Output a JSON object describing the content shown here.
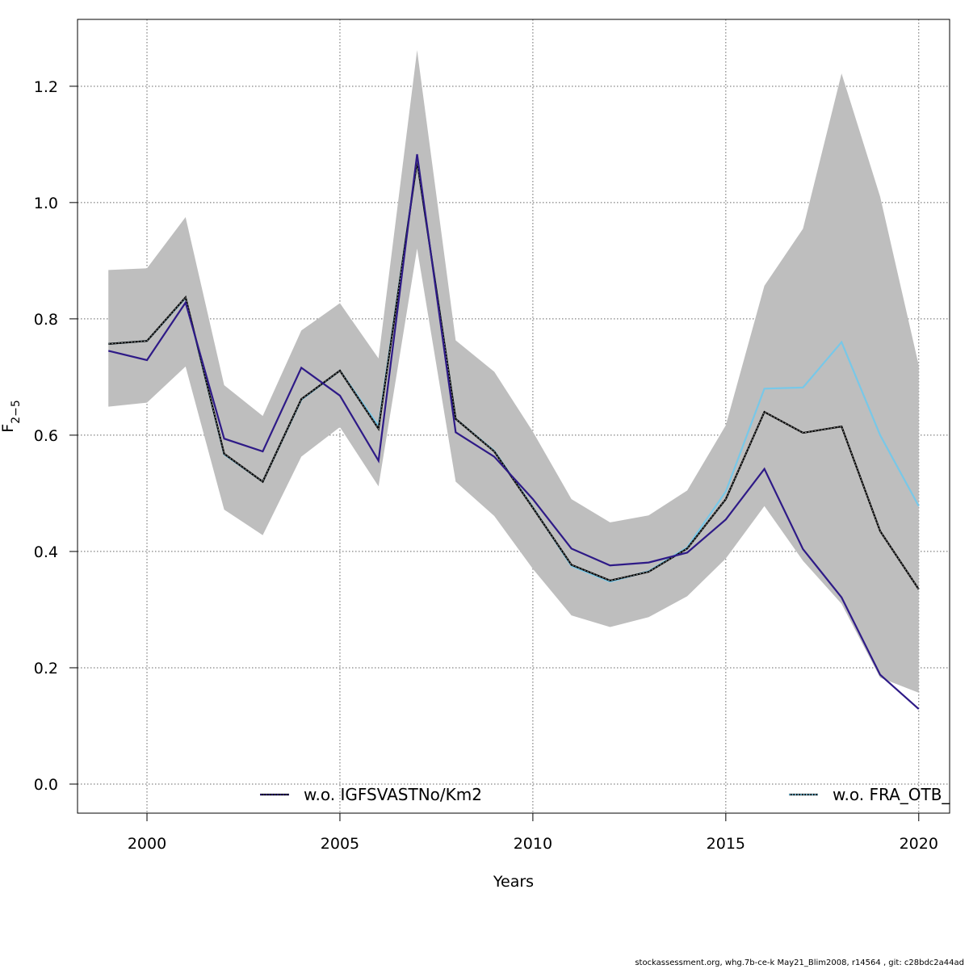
{
  "chart_data": {
    "type": "line",
    "xlabel": "Years",
    "ylabel_main": "F",
    "ylabel_sub": "2−5",
    "xlim": [
      1998.2,
      2020.8
    ],
    "ylim": [
      -0.05,
      1.315
    ],
    "xticks": [
      2000,
      2005,
      2010,
      2015,
      2020
    ],
    "yticks": [
      0.0,
      0.2,
      0.4,
      0.6,
      0.8,
      1.0,
      1.2
    ],
    "ytick_labels": [
      "0.0",
      "0.2",
      "0.4",
      "0.6",
      "0.8",
      "1.0",
      "1.2"
    ],
    "grid": true,
    "x": [
      1999,
      2000,
      2001,
      2002,
      2003,
      2004,
      2005,
      2006,
      2007,
      2008,
      2009,
      2010,
      2011,
      2012,
      2013,
      2014,
      2015,
      2016,
      2017,
      2018,
      2019,
      2020
    ],
    "band": {
      "color": "#bebebe",
      "upper": [
        0.884,
        0.887,
        0.975,
        0.686,
        0.633,
        0.78,
        0.827,
        0.732,
        1.262,
        0.763,
        0.709,
        0.606,
        0.49,
        0.45,
        0.462,
        0.505,
        0.617,
        0.857,
        0.955,
        1.222,
        1.01,
        0.72
      ],
      "lower": [
        0.649,
        0.656,
        0.718,
        0.472,
        0.428,
        0.563,
        0.614,
        0.512,
        0.921,
        0.52,
        0.461,
        0.37,
        0.29,
        0.27,
        0.287,
        0.323,
        0.388,
        0.478,
        0.384,
        0.31,
        0.183,
        0.157
      ]
    },
    "series": [
      {
        "role": "base",
        "color": "#000000",
        "dashed": true,
        "values": [
          0.757,
          0.762,
          0.837,
          0.568,
          0.52,
          0.662,
          0.711,
          0.611,
          1.071,
          0.628,
          0.572,
          0.475,
          0.377,
          0.35,
          0.365,
          0.405,
          0.49,
          0.64,
          0.604,
          0.615,
          0.435,
          0.335
        ]
      },
      {
        "name": "w.o. IGFSVASTNo/Km2",
        "color": "#2e1a87",
        "dashed": false,
        "values": [
          0.745,
          0.729,
          0.828,
          0.594,
          0.572,
          0.716,
          0.668,
          0.556,
          1.083,
          0.605,
          0.563,
          0.49,
          0.405,
          0.376,
          0.381,
          0.398,
          0.455,
          0.542,
          0.404,
          0.321,
          0.188,
          0.129
        ]
      },
      {
        "name": "w.o. FRA_OTB_",
        "color": "#78c8e8",
        "dashed": false,
        "values": [
          0.757,
          0.762,
          0.836,
          0.567,
          0.52,
          0.661,
          0.711,
          0.616,
          1.071,
          0.628,
          0.573,
          0.476,
          0.375,
          0.348,
          0.366,
          0.407,
          0.503,
          0.68,
          0.682,
          0.76,
          0.6,
          0.478
        ]
      }
    ],
    "legend": [
      {
        "label": "w.o. IGFSVASTNo/Km2",
        "color": "#2e1a87",
        "position": "bottom-left"
      },
      {
        "label": "w.o. FRA_OTB_",
        "color": "#78c8e8",
        "position": "bottom-right"
      }
    ]
  },
  "footer": "stockassessment.org, whg.7b-ce-k  May21_Blim2008, r14564 , git: c28bdc2a44ad"
}
